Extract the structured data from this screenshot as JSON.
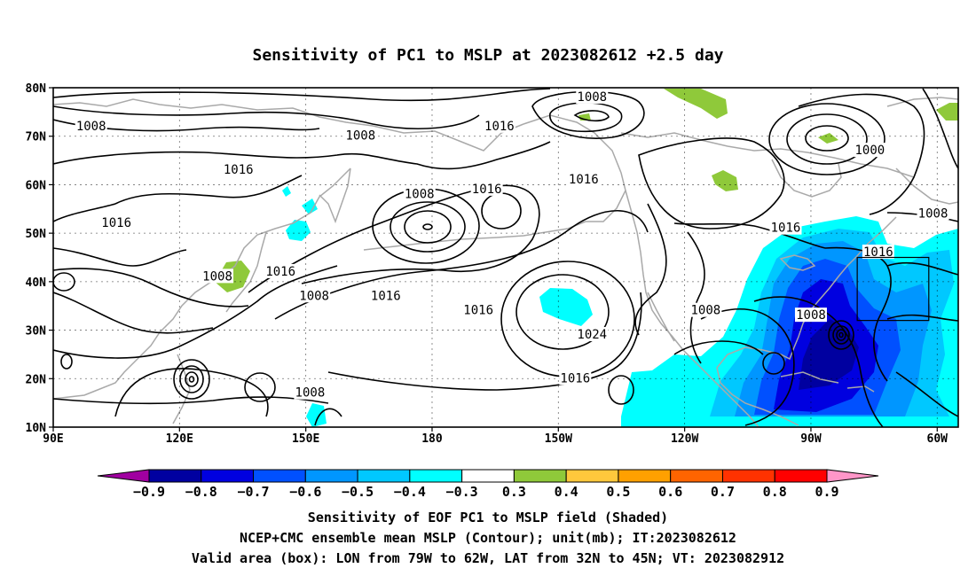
{
  "title": "Sensitivity of PC1 to MSLP at 2023082612 +2.5 day",
  "map": {
    "lon_range": [
      90,
      305
    ],
    "lat_range": [
      10,
      80
    ],
    "lat_ticks": [
      "80N",
      "70N",
      "60N",
      "50N",
      "40N",
      "30N",
      "20N",
      "10N"
    ],
    "lon_ticks": [
      "90E",
      "120E",
      "150E",
      "180",
      "150W",
      "120W",
      "90W",
      "60W"
    ],
    "colors": {
      "coast": "#a9a9a9",
      "contour": "#000000",
      "pos_03_04": "#8fc93a",
      "neg_03_04": "#00ffff",
      "neg_04_05": "#00c8ff",
      "neg_05_06": "#0096ff",
      "neg_06_07": "#0050ff",
      "neg_07_08": "#0000e0",
      "neg_08_09": "#0000a0"
    },
    "contour_labels": [
      {
        "text": "1008",
        "lon": 99,
        "lat": 72
      },
      {
        "text": "1008",
        "lon": 163,
        "lat": 70
      },
      {
        "text": "1016",
        "lon": 134,
        "lat": 63
      },
      {
        "text": "1016",
        "lon": 105,
        "lat": 52
      },
      {
        "text": "1008",
        "lon": 129,
        "lat": 41
      },
      {
        "text": "1016",
        "lon": 144,
        "lat": 42
      },
      {
        "text": "1008",
        "lon": 152,
        "lat": 37
      },
      {
        "text": "1016",
        "lon": 169,
        "lat": 37
      },
      {
        "text": "1008",
        "lon": 177,
        "lat": 58
      },
      {
        "text": "1016",
        "lon": 196,
        "lat": 72
      },
      {
        "text": "1016",
        "lon": 193,
        "lat": 59
      },
      {
        "text": "1008",
        "lon": 218,
        "lat": 78
      },
      {
        "text": "1016",
        "lon": 216,
        "lat": 61
      },
      {
        "text": "1016",
        "lon": 191,
        "lat": 34
      },
      {
        "text": "1024",
        "lon": 218,
        "lat": 29
      },
      {
        "text": "1016",
        "lon": 214,
        "lat": 20
      },
      {
        "text": "1008",
        "lon": 151,
        "lat": 17
      },
      {
        "text": "1008",
        "lon": 245,
        "lat": 34
      },
      {
        "text": "1016",
        "lon": 264,
        "lat": 51
      },
      {
        "text": "1000",
        "lon": 284,
        "lat": 67
      },
      {
        "text": "1008",
        "lon": 299,
        "lat": 54
      },
      {
        "text": "1016",
        "lon": 286,
        "lat": 46
      },
      {
        "text": "1008",
        "lon": 270,
        "lat": 33
      }
    ],
    "valid_box": {
      "lon_w": 281,
      "lon_e": 298,
      "lat_s": 32,
      "lat_n": 45
    }
  },
  "colorbar": {
    "labels": [
      "-0.9",
      "-0.8",
      "-0.7",
      "-0.6",
      "-0.5",
      "-0.4",
      "-0.3",
      "0.3",
      "0.4",
      "0.5",
      "0.6",
      "0.7",
      "0.8",
      "0.9"
    ],
    "colors": [
      "#a000a0",
      "#0000a0",
      "#0000e0",
      "#0050ff",
      "#0096ff",
      "#00c8ff",
      "#00ffff",
      "#ffffff",
      "#8fc93a",
      "#ffc83c",
      "#ffa000",
      "#ff6400",
      "#ff3200",
      "#ff0000",
      "#ff96c8"
    ]
  },
  "footer": {
    "line1": "Sensitivity of EOF PC1 to MSLP field (Shaded)",
    "line2": "NCEP+CMC ensemble mean MSLP (Contour); unit(mb); IT:2023082612",
    "line3": "Valid area (box): LON from 79W to 62W, LAT from 32N to 45N; VT: 2023082912"
  }
}
